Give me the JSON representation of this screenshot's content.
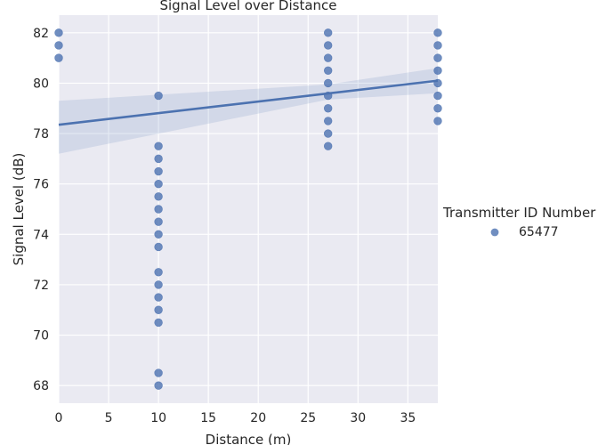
{
  "chart_data": {
    "type": "scatter",
    "title": "Signal Level over Distance",
    "xlabel": "Distance (m)",
    "ylabel": "Signal Level (dB)",
    "xlim": [
      0,
      38
    ],
    "ylim": [
      67.3,
      82.7
    ],
    "xticks": [
      0,
      5,
      10,
      15,
      20,
      25,
      30,
      35
    ],
    "yticks": [
      68,
      70,
      72,
      74,
      76,
      78,
      80,
      82
    ],
    "grid": true,
    "background": "#eaeaf2",
    "legend": {
      "title": "Transmitter ID Number",
      "position": "right",
      "entries": [
        {
          "label": "65477",
          "color": "#4c72b0"
        }
      ]
    },
    "series": [
      {
        "name": "65477",
        "color": "#4c72b0",
        "points": [
          [
            0,
            82
          ],
          [
            0,
            81.5
          ],
          [
            0,
            81
          ],
          [
            10,
            79.5
          ],
          [
            10,
            77.5
          ],
          [
            10,
            77
          ],
          [
            10,
            76.5
          ],
          [
            10,
            76
          ],
          [
            10,
            75.5
          ],
          [
            10,
            75
          ],
          [
            10,
            74.5
          ],
          [
            10,
            74
          ],
          [
            10,
            73.5
          ],
          [
            10,
            72.5
          ],
          [
            10,
            72
          ],
          [
            10,
            71.5
          ],
          [
            10,
            71
          ],
          [
            10,
            70.5
          ],
          [
            10,
            68.5
          ],
          [
            10,
            68
          ],
          [
            27,
            82
          ],
          [
            27,
            81.5
          ],
          [
            27,
            81
          ],
          [
            27,
            80.5
          ],
          [
            27,
            80
          ],
          [
            27,
            79.5
          ],
          [
            27,
            79
          ],
          [
            27,
            78.5
          ],
          [
            27,
            78
          ],
          [
            27,
            77.5
          ],
          [
            38,
            82
          ],
          [
            38,
            81.5
          ],
          [
            38,
            81
          ],
          [
            38,
            80.5
          ],
          [
            38,
            80
          ],
          [
            38,
            79.5
          ],
          [
            38,
            79
          ],
          [
            38,
            78.5
          ]
        ]
      }
    ],
    "regression": {
      "line": [
        [
          0,
          78.35
        ],
        [
          38,
          80.1
        ]
      ],
      "ci_upper": [
        [
          0,
          79.3
        ],
        [
          27,
          79.95
        ],
        [
          38,
          80.6
        ]
      ],
      "ci_lower": [
        [
          0,
          77.2
        ],
        [
          27,
          79.35
        ],
        [
          38,
          79.6
        ]
      ]
    }
  }
}
